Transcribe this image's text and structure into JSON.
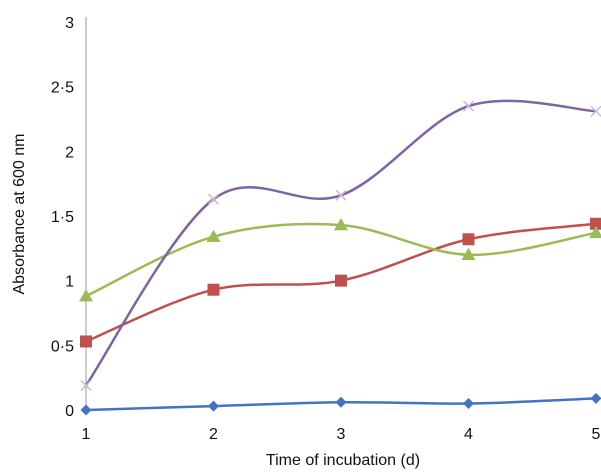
{
  "chart_data": {
    "type": "line",
    "title": "",
    "xlabel": "Time of incubation (d)",
    "ylabel": "Absorbance at 600 nm",
    "x": [
      1,
      2,
      3,
      4,
      5
    ],
    "xticks": [
      "1",
      "2",
      "3",
      "4",
      "5"
    ],
    "yticks": [
      "0",
      "0·5",
      "1",
      "1·5",
      "2",
      "2·5",
      "3"
    ],
    "ytick_values": [
      0,
      0.5,
      1,
      1.5,
      2,
      2.5,
      3
    ],
    "xlim": [
      1,
      5
    ],
    "ylim": [
      0,
      3
    ],
    "grid": false,
    "legend": "none",
    "series": [
      {
        "marker": "diamond",
        "color": "#4472C4",
        "values": [
          0.0,
          0.03,
          0.06,
          0.05,
          0.09
        ]
      },
      {
        "marker": "square",
        "color": "#C0504D",
        "values": [
          0.53,
          0.93,
          1.0,
          1.32,
          1.44
        ]
      },
      {
        "marker": "triangle",
        "color": "#9BBB59",
        "values": [
          0.88,
          1.34,
          1.43,
          1.2,
          1.37
        ]
      },
      {
        "marker": "x",
        "color": "#8064A2",
        "values": [
          0.19,
          1.63,
          1.66,
          2.35,
          2.31
        ]
      }
    ]
  }
}
